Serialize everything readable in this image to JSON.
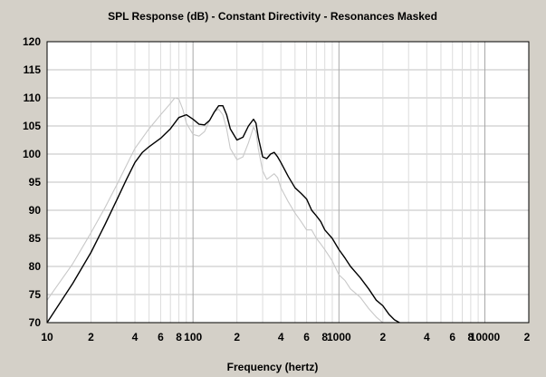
{
  "chart_data": {
    "type": "line",
    "title": "SPL Response (dB) - Constant Directivity - Resonances Masked",
    "xlabel": "Frequency (hertz)",
    "ylabel": "",
    "x_scale": "log",
    "xlim": [
      10,
      20000
    ],
    "ylim": [
      70,
      120
    ],
    "grid": true,
    "legend": "none",
    "y_ticks": [
      "120",
      "115",
      "110",
      "105",
      "100",
      "95",
      "90",
      "85",
      "80",
      "75",
      "70"
    ],
    "x_tick_labels": [
      {
        "value": 10,
        "label": "10"
      },
      {
        "value": 20,
        "label": "2"
      },
      {
        "value": 40,
        "label": "4"
      },
      {
        "value": 60,
        "label": "6"
      },
      {
        "value": 80,
        "label": "8"
      },
      {
        "value": 100,
        "label": "100"
      },
      {
        "value": 200,
        "label": "2"
      },
      {
        "value": 400,
        "label": "4"
      },
      {
        "value": 600,
        "label": "6"
      },
      {
        "value": 800,
        "label": "8"
      },
      {
        "value": 1000,
        "label": "1000"
      },
      {
        "value": 2000,
        "label": "2"
      },
      {
        "value": 4000,
        "label": "4"
      },
      {
        "value": 6000,
        "label": "6"
      },
      {
        "value": 8000,
        "label": "8"
      },
      {
        "value": 10000,
        "label": "10000"
      },
      {
        "value": 20000,
        "label": "2"
      }
    ],
    "colors": {
      "background": "#d4d0c8",
      "plot_bg": "#ffffff",
      "grid": "#c0c0c0"
    },
    "series": [
      {
        "color": "#c8c8c8",
        "x": [
          10,
          15,
          20,
          25,
          30,
          35,
          40,
          50,
          60,
          70,
          75,
          80,
          85,
          90,
          100,
          110,
          120,
          130,
          140,
          150,
          160,
          170,
          180,
          200,
          220,
          240,
          260,
          270,
          280,
          300,
          320,
          340,
          360,
          380,
          400,
          450,
          500,
          550,
          600,
          650,
          700,
          750,
          800,
          900,
          1000,
          1100,
          1200,
          1400,
          1600,
          1800,
          2000
        ],
        "y": [
          74,
          80.5,
          86,
          90.5,
          94.5,
          98,
          101,
          104.5,
          107,
          109,
          110,
          109.8,
          108,
          105.5,
          103.5,
          103.2,
          104,
          106,
          107.5,
          108,
          107,
          104.5,
          101,
          99,
          99.5,
          102,
          104.8,
          104,
          101,
          97,
          95.5,
          96,
          96.5,
          95.8,
          94,
          91.5,
          89.5,
          88,
          86.5,
          86.5,
          85,
          84,
          83,
          81,
          78.5,
          77.5,
          76,
          74.5,
          72.5,
          71,
          70
        ]
      },
      {
        "color": "#000000",
        "x": [
          10,
          15,
          20,
          25,
          30,
          35,
          40,
          45,
          50,
          60,
          70,
          80,
          90,
          100,
          110,
          120,
          130,
          140,
          150,
          160,
          170,
          180,
          200,
          220,
          240,
          260,
          270,
          280,
          300,
          320,
          340,
          360,
          380,
          400,
          450,
          500,
          550,
          600,
          650,
          700,
          750,
          800,
          900,
          1000,
          1100,
          1200,
          1400,
          1600,
          1800,
          2000,
          2200,
          2400,
          2600
        ],
        "y": [
          70,
          77,
          82.5,
          87.5,
          91.8,
          95.5,
          98.5,
          100.3,
          101.3,
          102.8,
          104.5,
          106.5,
          107,
          106.2,
          105.3,
          105.2,
          106,
          107.5,
          108.6,
          108.6,
          107,
          104.5,
          102.5,
          103,
          105,
          106.2,
          105.5,
          103,
          99.5,
          99.2,
          100,
          100.3,
          99.5,
          98.5,
          96,
          94,
          93,
          92,
          90,
          89,
          88,
          86.5,
          85,
          83,
          81.5,
          80,
          78,
          76,
          74,
          73,
          71.5,
          70.5,
          70
        ]
      }
    ]
  }
}
